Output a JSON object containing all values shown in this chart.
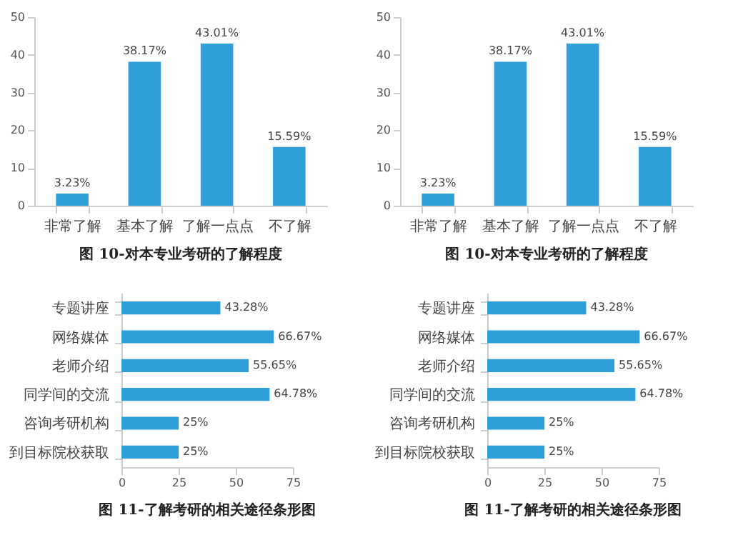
{
  "chart_data": [
    {
      "type": "bar",
      "title": "图 10-对本专业考研的了解程度",
      "categories": [
        "非常了解",
        "基本了解",
        "了解一点点",
        "不了解"
      ],
      "values": [
        3.23,
        38.17,
        43.01,
        15.59
      ],
      "value_labels": [
        "3.23%",
        "38.17%",
        "43.01%",
        "15.59%"
      ],
      "color": "#2e9fd8",
      "ylim": [
        0,
        50
      ],
      "yticks": [
        0,
        10,
        20,
        30,
        40,
        50
      ]
    },
    {
      "type": "bar",
      "title": "图 10-对本专业考研的了解程度",
      "categories": [
        "非常了解",
        "基本了解",
        "了解一点点",
        "不了解"
      ],
      "values": [
        3.23,
        38.17,
        43.01,
        15.59
      ],
      "value_labels": [
        "3.23%",
        "38.17%",
        "43.01%",
        "15.59%"
      ],
      "color": "#2e9fd8",
      "ylim": [
        0,
        50
      ],
      "yticks": [
        0,
        10,
        20,
        30,
        40,
        50
      ]
    },
    {
      "type": "bar",
      "orientation": "horizontal",
      "title": "图 11-了解考研的相关途径条形图",
      "categories": [
        "专题讲座",
        "网络媒体",
        "老师介绍",
        "同学间的交流",
        "咨询考研机构",
        "到目标院校获取"
      ],
      "values": [
        43.28,
        66.67,
        55.65,
        64.78,
        25,
        25
      ],
      "value_labels": [
        "43.28%",
        "66.67%",
        "55.65%",
        "64.78%",
        "25%",
        "25%"
      ],
      "color": "#2e9fd8",
      "xlim": [
        0,
        75
      ],
      "xticks": [
        0,
        25,
        50,
        75
      ]
    },
    {
      "type": "bar",
      "orientation": "horizontal",
      "title": "图 11-了解考研的相关途径条形图",
      "categories": [
        "专题讲座",
        "网络媒体",
        "老师介绍",
        "同学间的交流",
        "咨询考研机构",
        "到目标院校获取"
      ],
      "values": [
        43.28,
        66.67,
        55.65,
        64.78,
        25,
        25
      ],
      "value_labels": [
        "43.28%",
        "66.67%",
        "55.65%",
        "64.78%",
        "25%",
        "25%"
      ],
      "color": "#2e9fd8",
      "xlim": [
        0,
        75
      ],
      "xticks": [
        0,
        25,
        50,
        75
      ]
    }
  ]
}
